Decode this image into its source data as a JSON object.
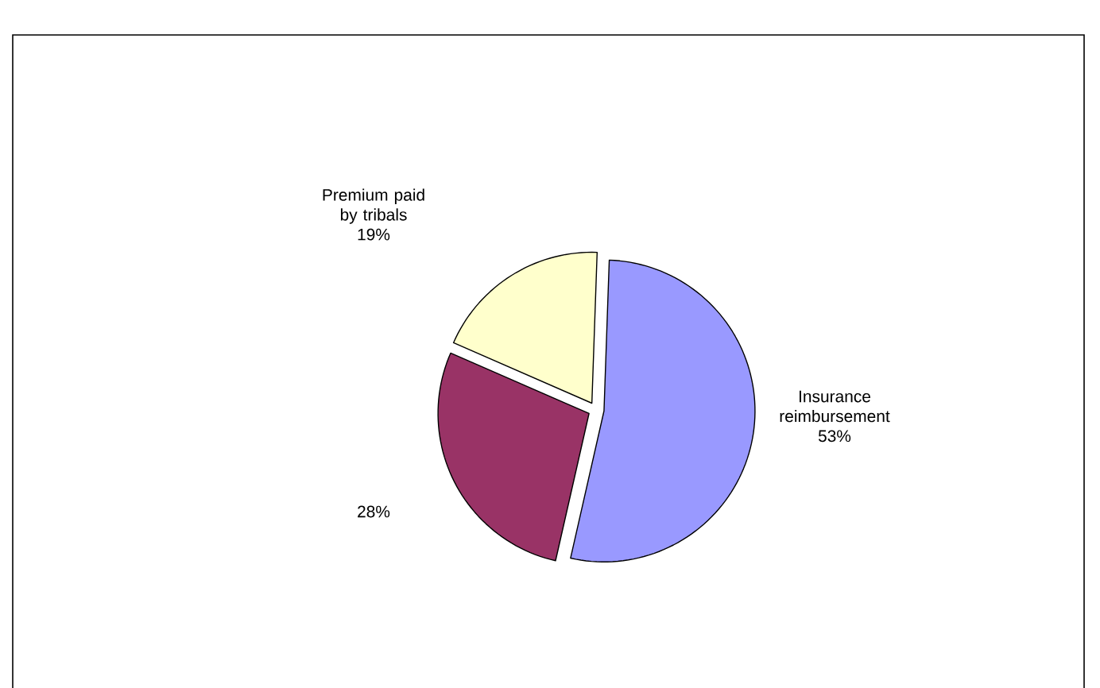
{
  "chart_data": {
    "type": "pie",
    "categories": [
      "Insurance reimbursement",
      null,
      "Premium paid by tribals"
    ],
    "values": [
      53,
      28,
      19
    ],
    "colors": [
      "#9999ff",
      "#993366",
      "#ffffcc"
    ],
    "value_labels": [
      "53%",
      "28%",
      "19%"
    ]
  }
}
